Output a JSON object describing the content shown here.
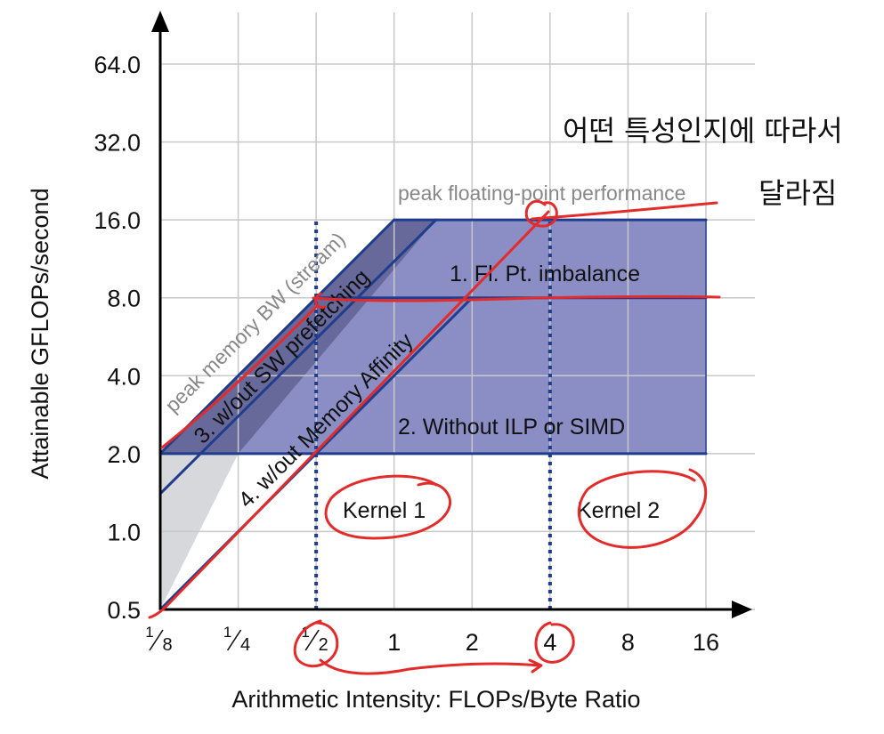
{
  "chart_data": {
    "type": "line",
    "title": "",
    "xlabel": "Arithmetic Intensity: FLOPs/Byte Ratio",
    "ylabel": "Attainable GFLOPs/second",
    "x_scale": "log2",
    "y_scale": "log2",
    "xlim": [
      0.125,
      16
    ],
    "ylim": [
      0.5,
      64
    ],
    "grid": true,
    "x_ticks": [
      {
        "value": 0.125,
        "num": "1",
        "den": "8"
      },
      {
        "value": 0.25,
        "num": "1",
        "den": "4"
      },
      {
        "value": 0.5,
        "num": "1",
        "den": "2"
      },
      {
        "value": 1,
        "label": "1"
      },
      {
        "value": 2,
        "label": "2"
      },
      {
        "value": 4,
        "label": "4"
      },
      {
        "value": 8,
        "label": "8"
      },
      {
        "value": 16,
        "label": "16"
      }
    ],
    "y_ticks": [
      {
        "value": 0.5,
        "label": "0.5"
      },
      {
        "value": 1,
        "label": "1.0"
      },
      {
        "value": 2,
        "label": "2.0"
      },
      {
        "value": 4,
        "label": "4.0"
      },
      {
        "value": 8,
        "label": "8.0"
      },
      {
        "value": 16,
        "label": "16.0"
      },
      {
        "value": 32,
        "label": "32.0"
      },
      {
        "value": 64,
        "label": "64.0"
      }
    ],
    "roofs": [
      {
        "id": "peak_flops",
        "points": [
          [
            1,
            16
          ],
          [
            16,
            16
          ]
        ],
        "label": "peak floating-point performance"
      },
      {
        "id": "peak_bw",
        "points": [
          [
            0.125,
            2
          ],
          [
            1,
            16
          ]
        ],
        "label": "peak memory BW (stream)"
      },
      {
        "id": "fp_imbalance",
        "points": [
          [
            0.5,
            8
          ],
          [
            16,
            8
          ]
        ],
        "label": "1. Fl. Pt. imbalance"
      },
      {
        "id": "no_ilp_simd",
        "points": [
          [
            0.125,
            2
          ],
          [
            16,
            2
          ]
        ],
        "label": "2. Without ILP or SIMD"
      },
      {
        "id": "no_sw_prefetch",
        "points": [
          [
            0.125,
            1.4
          ],
          [
            1.45,
            16
          ]
        ],
        "label": "3. w/out SW prefetching"
      },
      {
        "id": "no_mem_affinity",
        "points": [
          [
            0.125,
            0.5
          ],
          [
            2,
            8
          ]
        ],
        "label": "4. w/out Memory Affinity"
      }
    ],
    "kernels": [
      {
        "name": "Kernel 1",
        "x": 0.5
      },
      {
        "name": "Kernel 2",
        "x": 4
      }
    ],
    "colors": {
      "grid": "#c8c8c8",
      "roof_line": "#1f3d8c",
      "dark_region": "#67699b",
      "light_region": "#8a8ec4",
      "grey_region": "#d7d8dc",
      "kernel_line": "#1f3d8c",
      "ink": "#e32b2b"
    }
  },
  "handwriting": {
    "line1": "어떤 특성인지에 따라서",
    "line2": "달라짐"
  }
}
